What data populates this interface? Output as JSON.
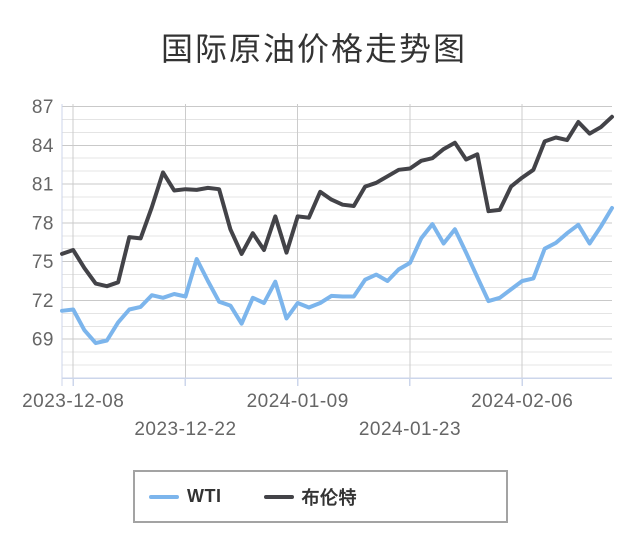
{
  "title": "国际原油价格走势图",
  "legend": {
    "items": [
      {
        "id": "wti",
        "name": "WTI",
        "color": "#7cb5ec"
      },
      {
        "id": "brent",
        "name": "布伦特",
        "color": "#434348"
      }
    ]
  },
  "colors": {
    "background": "#ffffff",
    "title_text": "#333333",
    "legend_text": "#333333",
    "legend_border": "#a3a3a3",
    "axis_label_text": "#666666"
  },
  "chart_data": {
    "type": "line",
    "title": "国际原油价格走势图",
    "x_axis": {
      "tick_labels": [
        {
          "label": "2023-12-08",
          "index": 1,
          "row": 1
        },
        {
          "label": "2023-12-22",
          "index": 11,
          "row": 2
        },
        {
          "label": "2024-01-09",
          "index": 21,
          "row": 1
        },
        {
          "label": "2024-01-23",
          "index": 31,
          "row": 2
        },
        {
          "label": "2024-02-06",
          "index": 41,
          "row": 1
        }
      ],
      "label_color": "#666666"
    },
    "y_axis": {
      "ticks": [
        69,
        72,
        75,
        78,
        81,
        84,
        87
      ],
      "minor_step": 1,
      "min": 66,
      "max": 87.2,
      "label_color": "#666666"
    },
    "grid": {
      "minor_color": "#e4e4e4",
      "major_color": "#c9c9c9",
      "vertical_color": "#cccccc",
      "axis_line_color": "#ccd6eb"
    },
    "legend_position": "bottom-center",
    "series": [
      {
        "id": "wti",
        "name": "WTI",
        "color": "#7cb5ec",
        "values": [
          71.2,
          71.3,
          69.7,
          68.7,
          68.9,
          70.3,
          71.3,
          71.5,
          72.4,
          72.2,
          72.5,
          72.3,
          75.2,
          73.5,
          71.9,
          71.6,
          70.2,
          72.2,
          71.8,
          73.45,
          70.6,
          71.8,
          71.45,
          71.8,
          72.35,
          72.3,
          72.3,
          73.6,
          74.0,
          73.5,
          74.4,
          74.9,
          76.8,
          77.9,
          76.4,
          77.5,
          75.7,
          73.8,
          71.95,
          72.2,
          72.85,
          73.5,
          73.7,
          76.0,
          76.45,
          77.2,
          77.85,
          76.4,
          77.7,
          79.15
        ]
      },
      {
        "id": "brent",
        "name": "布伦特",
        "color": "#434348",
        "values": [
          75.6,
          75.9,
          74.5,
          73.3,
          73.1,
          73.4,
          76.9,
          76.8,
          79.2,
          81.9,
          80.5,
          80.6,
          80.55,
          80.7,
          80.6,
          77.5,
          75.6,
          77.2,
          75.9,
          78.5,
          75.7,
          78.5,
          78.4,
          80.4,
          79.8,
          79.4,
          79.3,
          80.8,
          81.1,
          81.6,
          82.1,
          82.2,
          82.8,
          83.0,
          83.7,
          84.2,
          82.9,
          83.3,
          78.9,
          79.0,
          80.8,
          81.5,
          82.1,
          84.3,
          84.6,
          84.4,
          85.8,
          84.9,
          85.4,
          86.2
        ]
      }
    ]
  }
}
